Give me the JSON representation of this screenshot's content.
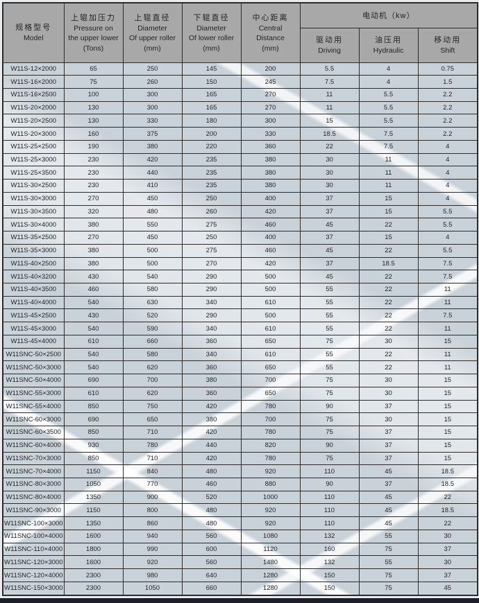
{
  "table": {
    "header": {
      "model": {
        "zh": "规格型号",
        "en1": "Model"
      },
      "pressure": {
        "zh": "上辊加压力",
        "en1": "Pressure on",
        "en2": "the upper lower",
        "en3": "(Tons)"
      },
      "upper_dia": {
        "zh": "上辊直径",
        "en1": "Diameter",
        "en2": "Of upper roller",
        "en3": "(mm)"
      },
      "lower_dia": {
        "zh": "下辊直径",
        "en1": "Diameter",
        "en2": "Of lower roller",
        "en3": "(mm)"
      },
      "central": {
        "zh": "中心距离",
        "en1": "Central",
        "en2": "Distance",
        "en3": "(mm)"
      },
      "motor": {
        "group": "电动机（kw）",
        "driving_zh": "驱动用",
        "driving_en": "Driving",
        "hydraulic_zh": "油压用",
        "hydraulic_en": "Hydraulic",
        "shift_zh": "移动用",
        "shift_en": "Shift"
      }
    },
    "rows": [
      [
        "W11S-12×2000",
        "65",
        "250",
        "145",
        "200",
        "5.5",
        "4",
        "0.75"
      ],
      [
        "W11S-16×2000",
        "75",
        "260",
        "150",
        "245",
        "7.5",
        "4",
        "1.5"
      ],
      [
        "W11S-16×2500",
        "100",
        "300",
        "165",
        "270",
        "11",
        "5.5",
        "2.2"
      ],
      [
        "W11S-20×2000",
        "130",
        "300",
        "165",
        "270",
        "11",
        "5.5",
        "2.2"
      ],
      [
        "W11S-20×2500",
        "130",
        "330",
        "180",
        "300",
        "15",
        "5.5",
        "2.2"
      ],
      [
        "W11S-20×3000",
        "160",
        "375",
        "200",
        "330",
        "18.5",
        "7.5",
        "2.2"
      ],
      [
        "W11S-25×2500",
        "190",
        "380",
        "220",
        "360",
        "22",
        "7.5",
        "4"
      ],
      [
        "W11S-25×3000",
        "230",
        "420",
        "235",
        "380",
        "30",
        "11",
        "4"
      ],
      [
        "W11S-25×3500",
        "230",
        "440",
        "235",
        "380",
        "30",
        "11",
        "4"
      ],
      [
        "W11S-30×2500",
        "230",
        "410",
        "235",
        "380",
        "30",
        "11",
        "4"
      ],
      [
        "W11S-30×3000",
        "270",
        "450",
        "250",
        "400",
        "37",
        "15",
        "4"
      ],
      [
        "W11S-30×3500",
        "320",
        "480",
        "260",
        "420",
        "37",
        "15",
        "5.5"
      ],
      [
        "W11S-30×4000",
        "380",
        "550",
        "275",
        "460",
        "45",
        "22",
        "5.5"
      ],
      [
        "W11S-35×2500",
        "270",
        "450",
        "250",
        "400",
        "37",
        "15",
        "4"
      ],
      [
        "W11S-35×3000",
        "380",
        "500",
        "275",
        "460",
        "45",
        "22",
        "5.5"
      ],
      [
        "W11S-40×2500",
        "380",
        "500",
        "270",
        "420",
        "37",
        "18.5",
        "7.5"
      ],
      [
        "W11S-40×3200",
        "430",
        "540",
        "290",
        "500",
        "45",
        "22",
        "7.5"
      ],
      [
        "W11S-40×3500",
        "460",
        "580",
        "290",
        "500",
        "55",
        "22",
        "11"
      ],
      [
        "W11S-40×4000",
        "540",
        "630",
        "340",
        "610",
        "55",
        "22",
        "11"
      ],
      [
        "W11S-45×2500",
        "430",
        "520",
        "290",
        "500",
        "55",
        "22",
        "7.5"
      ],
      [
        "W11S-45×3000",
        "540",
        "590",
        "340",
        "610",
        "55",
        "22",
        "11"
      ],
      [
        "W11S-45×4000",
        "610",
        "660",
        "360",
        "650",
        "75",
        "30",
        "15"
      ],
      [
        "W11SNC-50×2500",
        "540",
        "580",
        "340",
        "610",
        "55",
        "22",
        "11"
      ],
      [
        "W11SNC-50×3000",
        "540",
        "620",
        "360",
        "650",
        "55",
        "22",
        "11"
      ],
      [
        "W11SNC-50×4000",
        "690",
        "700",
        "380",
        "700",
        "75",
        "30",
        "15"
      ],
      [
        "W11SNC-55×3000",
        "610",
        "620",
        "360",
        "650",
        "75",
        "30",
        "15"
      ],
      [
        "W11SNC-55×4000",
        "850",
        "750",
        "420",
        "780",
        "90",
        "37",
        "15"
      ],
      [
        "W11SNC-60×3000",
        "690",
        "650",
        "380",
        "700",
        "75",
        "30",
        "15"
      ],
      [
        "W11SNC-60×3500",
        "850",
        "710",
        "420",
        "780",
        "75",
        "37",
        "15"
      ],
      [
        "W11SNC-60×4000",
        "930",
        "780",
        "440",
        "820",
        "90",
        "37",
        "15"
      ],
      [
        "W11SNC-70×3000",
        "850",
        "710",
        "420",
        "780",
        "75",
        "37",
        "15"
      ],
      [
        "W11SNC-70×4000",
        "1150",
        "840",
        "480",
        "920",
        "110",
        "45",
        "18.5"
      ],
      [
        "W11SNC-80×3000",
        "1050",
        "770",
        "460",
        "880",
        "90",
        "37",
        "18.5"
      ],
      [
        "W11SNC-80×4000",
        "1350",
        "900",
        "520",
        "1000",
        "110",
        "45",
        "22"
      ],
      [
        "W11SNC-90×3000",
        "1150",
        "800",
        "480",
        "920",
        "110",
        "45",
        "18.5"
      ],
      [
        "W11SNC-100×3000",
        "1350",
        "860",
        "480",
        "920",
        "110",
        "45",
        "22"
      ],
      [
        "W11SNC-100×4000",
        "1600",
        "940",
        "560",
        "1080",
        "132",
        "55",
        "30"
      ],
      [
        "W11SNC-110×4000",
        "1800",
        "990",
        "600",
        "1120",
        "160",
        "75",
        "37"
      ],
      [
        "W11SNC-120×3000",
        "1600",
        "920",
        "560",
        "1480",
        "132",
        "55",
        "30"
      ],
      [
        "W11SNC-120×4000",
        "2300",
        "980",
        "640",
        "1280",
        "150",
        "75",
        "37"
      ],
      [
        "W11SNC-150×3000",
        "2300",
        "1050",
        "660",
        "1280",
        "150",
        "75",
        "45"
      ]
    ]
  },
  "colors": {
    "page_bg": "#e9ebed",
    "body_bg": "#cad2d9",
    "header_bg": "#a8a8a8",
    "border": "#2b2b2b",
    "text": "#1f2224",
    "bottom_bar": "#1a202a"
  }
}
